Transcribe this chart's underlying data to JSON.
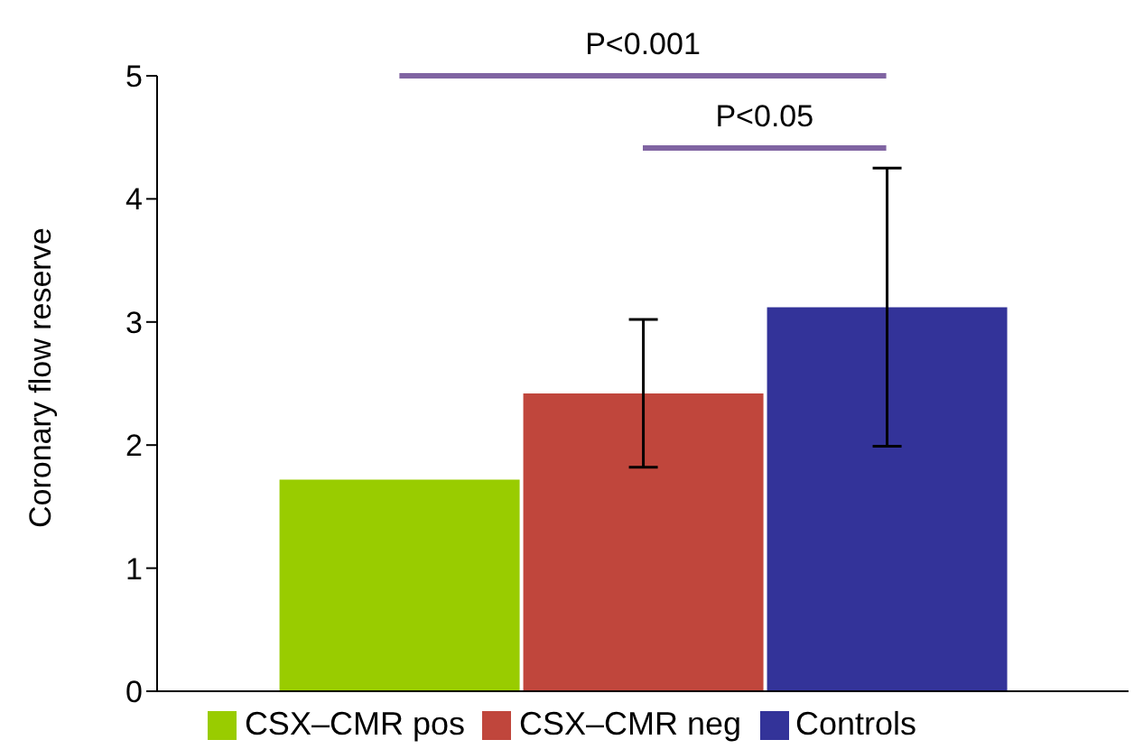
{
  "chart_data": {
    "type": "bar",
    "ylabel": "Coronary flow reserve",
    "categories": [
      null
    ],
    "series": [
      {
        "name": "CSX–CMR pos",
        "color": "#99cc00",
        "values": [
          1.72
        ]
      },
      {
        "name": "CSX–CMR neg",
        "color": "#c0463c",
        "values": [
          2.42
        ],
        "errors": [
          0.6
        ]
      },
      {
        "name": "Controls",
        "color": "#333399",
        "values": [
          3.12
        ],
        "errors": [
          1.13
        ]
      }
    ],
    "ylim": [
      0,
      5
    ],
    "yticks": [
      0,
      1,
      2,
      3,
      4,
      5
    ],
    "legend": "bottom",
    "annotations": [
      "P<0.001",
      "P<0.05"
    ]
  }
}
